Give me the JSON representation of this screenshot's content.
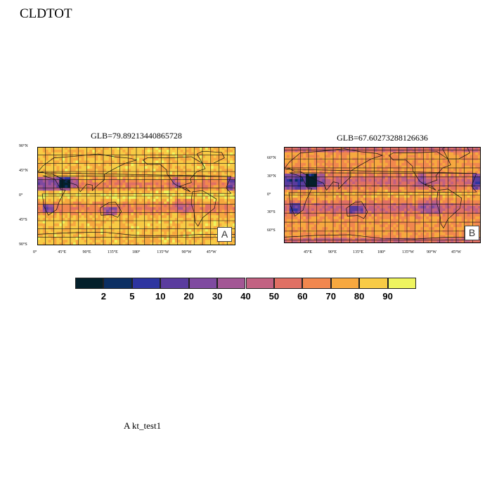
{
  "title": "CLDTOT",
  "caption": "A  kt_test1",
  "chart_data": [
    {
      "type": "heatmap",
      "panel": "A",
      "title": "GLB=79.89213440865728",
      "x_ticks": [
        "0°",
        "45°E",
        "90°E",
        "135°E",
        "180°",
        "135°W",
        "90°W",
        "45°W"
      ],
      "y_ticks": [
        "90°N",
        "45°N",
        "0°",
        "45°S",
        "90°S"
      ],
      "lat_range": [
        -90,
        90
      ],
      "lon_range": [
        0,
        360
      ]
    },
    {
      "type": "heatmap",
      "panel": "B",
      "title": "GLB=67.60273288126636",
      "x_ticks": [
        "45°E",
        "90°E",
        "135°E",
        "180°",
        "135°W",
        "90°W",
        "45°W"
      ],
      "y_ticks": [
        "60°N",
        "30°N",
        "0°",
        "30°S",
        "60°S"
      ],
      "lat_range": [
        -80,
        80
      ],
      "lon_range": [
        0,
        360
      ]
    }
  ],
  "colorbar": {
    "labels": [
      "2",
      "5",
      "10",
      "20",
      "30",
      "40",
      "50",
      "60",
      "70",
      "80",
      "90"
    ],
    "colors": [
      "#04202b",
      "#0c2f63",
      "#2e35a0",
      "#5a3c9e",
      "#7f4aa0",
      "#a35795",
      "#c26282",
      "#e07064",
      "#f1874e",
      "#f7a83f",
      "#f8cb45",
      "#eef45f"
    ]
  }
}
